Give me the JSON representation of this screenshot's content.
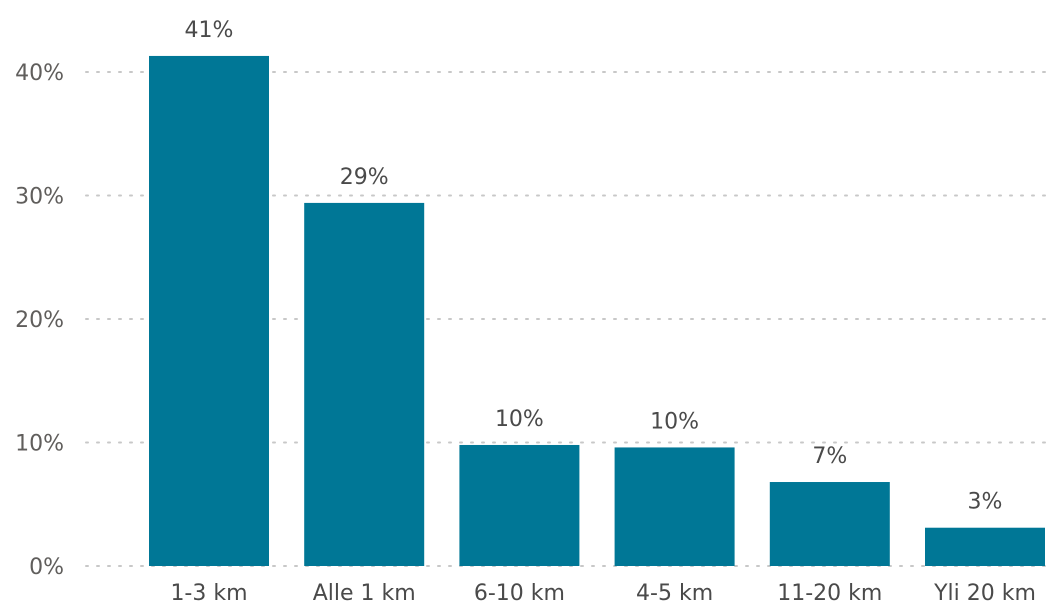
{
  "chart_data": {
    "type": "bar",
    "title": "",
    "xlabel": "",
    "ylabel": "",
    "categories": [
      "1-3 km",
      "Alle 1 km",
      "6-10 km",
      "4-5 km",
      "11-20 km",
      "Yli 20 km"
    ],
    "values": [
      41.3,
      29.4,
      9.8,
      9.6,
      6.8,
      3.1
    ],
    "data_labels": [
      "41%",
      "29%",
      "10%",
      "10%",
      "7%",
      "3%"
    ],
    "ylim": [
      0,
      40
    ],
    "yticks": [
      0,
      10,
      20,
      30,
      40
    ],
    "ytick_labels": [
      "0%",
      "10%",
      "20%",
      "30%",
      "40%"
    ],
    "grid": true,
    "bar_color": "#007796",
    "gridline_color": "#c8c8c8"
  }
}
